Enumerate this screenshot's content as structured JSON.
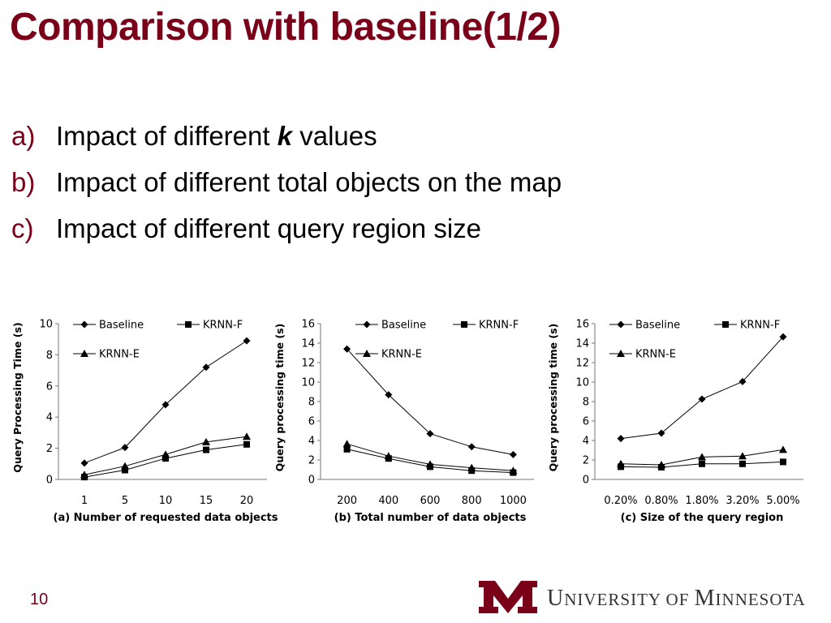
{
  "title": "Comparison with baseline(1/2)",
  "bullets": [
    {
      "marker": "a)",
      "pre": "Impact of different ",
      "em": "k",
      "post": " values"
    },
    {
      "marker": "b)",
      "pre": "Impact of different total objects on the map",
      "em": "",
      "post": ""
    },
    {
      "marker": "c)",
      "pre": "Impact of different query region size",
      "em": "",
      "post": ""
    }
  ],
  "slide_number": "10",
  "university": {
    "big1": "U",
    "rest1": "NIVERSITY OF ",
    "big2": "M",
    "rest2": "INNESOTA"
  },
  "logo_icon": "university-m-logo-icon",
  "colors": {
    "accent": "#7a0019",
    "series": "#000000"
  },
  "chart_data": [
    {
      "type": "line",
      "title": "",
      "xlabel": "(a) Number of requested  data objects",
      "ylabel": "Query Processing Time (s)",
      "categories": [
        "1",
        "5",
        "10",
        "15",
        "20"
      ],
      "ylim": [
        0,
        10
      ],
      "yticks": [
        0,
        2,
        4,
        6,
        8,
        10
      ],
      "grid": false,
      "legend": "top",
      "series": [
        {
          "name": "Baseline",
          "marker": "diamond",
          "values": [
            1.05,
            2.05,
            4.8,
            7.2,
            8.9
          ]
        },
        {
          "name": "KRNN-F",
          "marker": "square",
          "values": [
            0.15,
            0.6,
            1.35,
            1.9,
            2.25
          ]
        },
        {
          "name": "KRNN-E",
          "marker": "triangle",
          "values": [
            0.3,
            0.85,
            1.6,
            2.4,
            2.75
          ]
        }
      ]
    },
    {
      "type": "line",
      "title": "",
      "xlabel": "(b) Total number of data objects",
      "ylabel": "Query processing time (s)",
      "categories": [
        "200",
        "400",
        "600",
        "800",
        "1000"
      ],
      "ylim": [
        0,
        16
      ],
      "yticks": [
        0,
        2,
        4,
        6,
        8,
        10,
        12,
        14,
        16
      ],
      "grid": false,
      "legend": "top",
      "series": [
        {
          "name": "Baseline",
          "marker": "diamond",
          "values": [
            13.4,
            8.7,
            4.7,
            3.35,
            2.55
          ]
        },
        {
          "name": "KRNN-F",
          "marker": "square",
          "values": [
            3.1,
            2.15,
            1.3,
            0.9,
            0.7
          ]
        },
        {
          "name": "KRNN-E",
          "marker": "triangle",
          "values": [
            3.65,
            2.4,
            1.55,
            1.2,
            0.9
          ]
        }
      ]
    },
    {
      "type": "line",
      "title": "",
      "xlabel": "(c) Size of the query region",
      "ylabel": "Query processing time (s)",
      "categories": [
        "0.20%",
        "0.80%",
        "1.80%",
        "3.20%",
        "5.00%"
      ],
      "ylim": [
        0,
        16
      ],
      "yticks": [
        0,
        2,
        4,
        6,
        8,
        10,
        12,
        14,
        16
      ],
      "grid": false,
      "legend": "top",
      "series": [
        {
          "name": "Baseline",
          "marker": "diamond",
          "values": [
            4.2,
            4.75,
            8.25,
            10.05,
            14.65
          ]
        },
        {
          "name": "KRNN-F",
          "marker": "square",
          "values": [
            1.3,
            1.25,
            1.6,
            1.6,
            1.8
          ]
        },
        {
          "name": "KRNN-E",
          "marker": "triangle",
          "values": [
            1.6,
            1.5,
            2.3,
            2.4,
            3.05
          ]
        }
      ]
    }
  ]
}
